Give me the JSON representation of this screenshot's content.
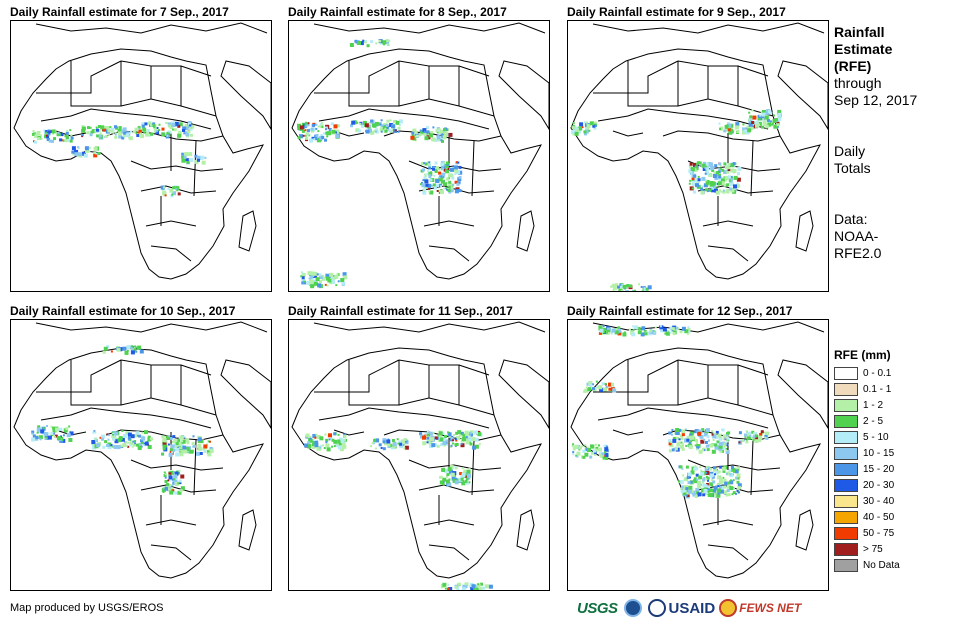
{
  "panels": [
    {
      "title": "Daily Rainfall estimate for 7 Sep., 2017"
    },
    {
      "title": "Daily Rainfall estimate for 8 Sep., 2017"
    },
    {
      "title": "Daily Rainfall estimate for 9 Sep., 2017"
    },
    {
      "title": "Daily Rainfall estimate for 10 Sep., 2017"
    },
    {
      "title": "Daily Rainfall estimate for 11 Sep., 2017"
    },
    {
      "title": "Daily Rainfall estimate for 12 Sep., 2017"
    }
  ],
  "sidebar": {
    "heading_1": "Rainfall",
    "heading_2": "Estimate",
    "heading_3": "(RFE)",
    "through": "through",
    "through_date": "Sep 12, 2017",
    "totals_1": "Daily",
    "totals_2": "Totals",
    "data_1": "Data:",
    "data_2": "NOAA-",
    "data_3": "RFE2.0"
  },
  "legend": {
    "title": "RFE (mm)",
    "items": [
      {
        "label": "0 - 0.1",
        "color": "#ffffff"
      },
      {
        "label": "0.1 - 1",
        "color": "#f0dcbc"
      },
      {
        "label": "1 - 2",
        "color": "#b4f0a8"
      },
      {
        "label": "2 - 5",
        "color": "#50d250"
      },
      {
        "label": "5 - 10",
        "color": "#b4ecf8"
      },
      {
        "label": "10 - 15",
        "color": "#8cc8f0"
      },
      {
        "label": "15 - 20",
        "color": "#4b96e6"
      },
      {
        "label": "20 - 30",
        "color": "#1e5ae6"
      },
      {
        "label": "30 - 40",
        "color": "#fae68c"
      },
      {
        "label": "40 - 50",
        "color": "#f5a500"
      },
      {
        "label": "50 - 75",
        "color": "#f03c00"
      },
      {
        "label": "> 75",
        "color": "#a01e1e"
      },
      {
        "label": "No Data",
        "color": "#a0a0a0"
      }
    ]
  },
  "footer": {
    "credit": "Map produced by USGS/EROS"
  },
  "logos": {
    "usgs": "USGS",
    "usaid": "USAID",
    "fews": "FEWS NET"
  }
}
